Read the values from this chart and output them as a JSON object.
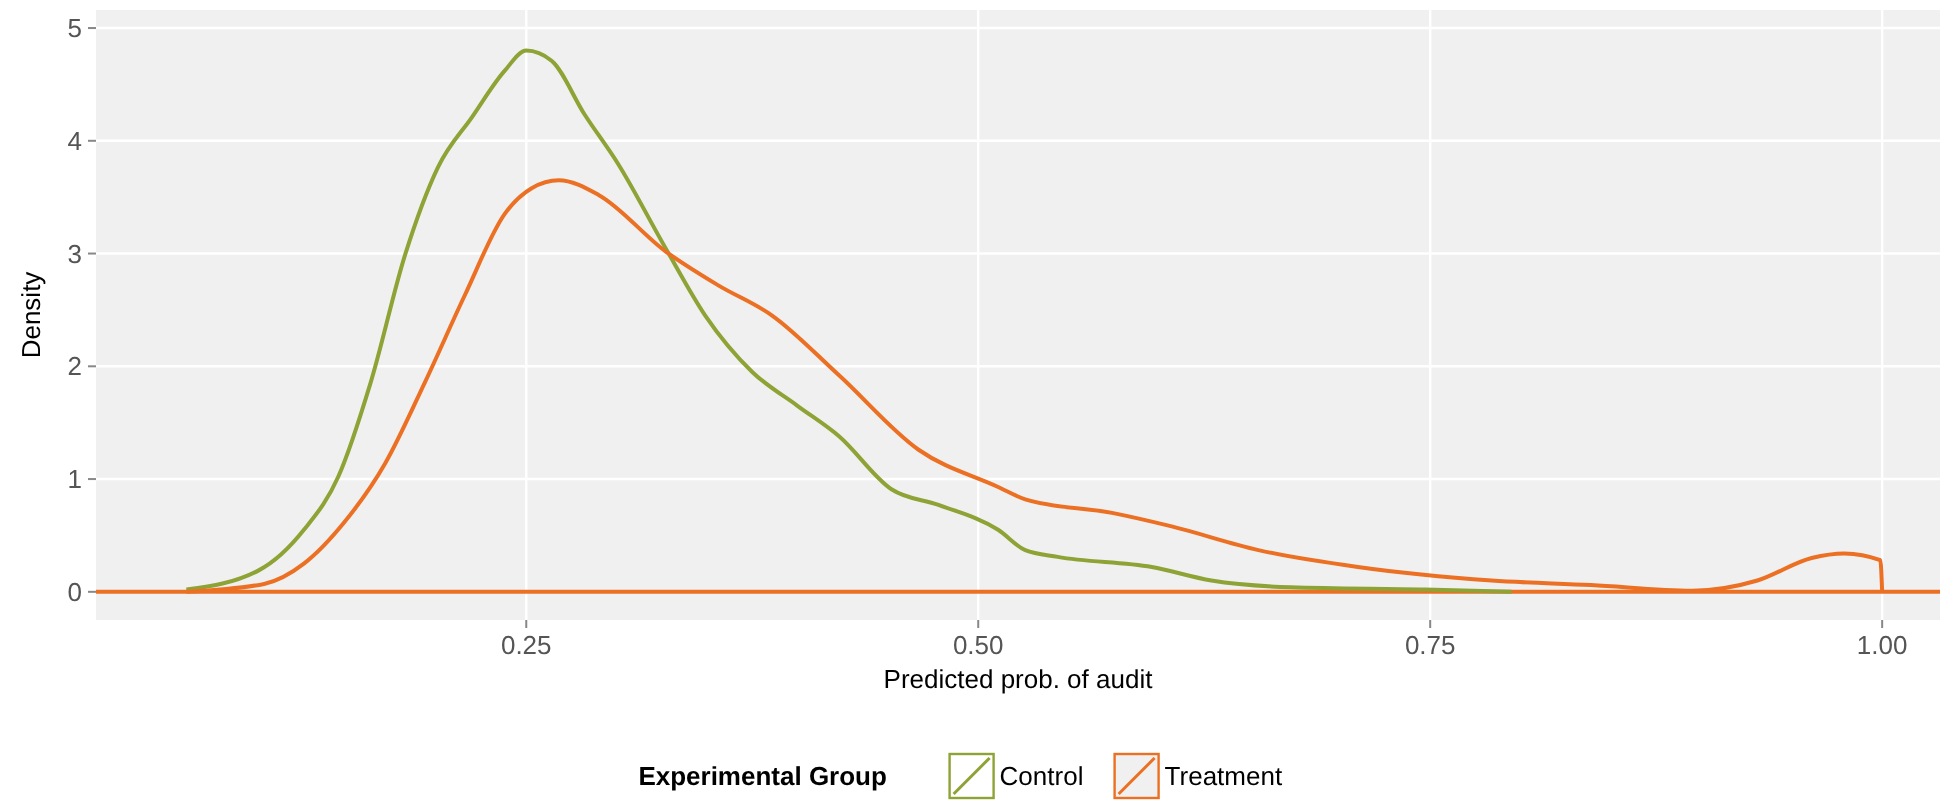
{
  "chart_data": {
    "type": "line",
    "xlabel": "Predicted prob. of audit",
    "ylabel": "Density",
    "legend_title": "Experimental Group",
    "legend": "bottom",
    "grid": true,
    "line_style": "solid",
    "marker": "none",
    "xlim": [
      0.012,
      1.032
    ],
    "ylim": [
      -0.25,
      5.16
    ],
    "xticks": [
      {
        "value": 0.25,
        "label": "0.25"
      },
      {
        "value": 0.5,
        "label": "0.50"
      },
      {
        "value": 0.75,
        "label": "0.75"
      },
      {
        "value": 1,
        "label": "1.00"
      }
    ],
    "yticks": [
      0,
      1,
      2,
      3,
      4,
      5
    ],
    "ref_lines": [
      {
        "axis": "y",
        "value": 0,
        "color": "#ec7024"
      }
    ],
    "series": [
      {
        "name": "Control",
        "color": "#8ea336",
        "x": [
          0.062,
          0.102,
          0.127,
          0.146,
          0.164,
          0.183,
          0.201,
          0.22,
          0.238,
          0.25,
          0.264,
          0.282,
          0.301,
          0.327,
          0.349,
          0.375,
          0.4,
          0.423,
          0.452,
          0.478,
          0.511,
          0.526,
          0.544,
          0.596,
          0.629,
          0.673,
          0.747,
          0.795
        ],
        "values": [
          0.02,
          0.19,
          0.55,
          1.02,
          1.86,
          2.99,
          3.76,
          4.21,
          4.62,
          4.8,
          4.71,
          4.24,
          3.79,
          3.05,
          2.45,
          1.95,
          1.65,
          1.38,
          0.91,
          0.77,
          0.55,
          0.37,
          0.31,
          0.22,
          0.1,
          0.04,
          0.02,
          0
        ]
      },
      {
        "name": "Treatment",
        "color": "#ec7024",
        "x": [
          0.062,
          0.105,
          0.127,
          0.149,
          0.172,
          0.194,
          0.216,
          0.238,
          0.253,
          0.268,
          0.29,
          0.327,
          0.356,
          0.386,
          0.423,
          0.467,
          0.511,
          0.526,
          0.574,
          0.607,
          0.655,
          0.71,
          0.784,
          0.839,
          0.895,
          0.931,
          0.961,
          0.979,
          0.999,
          1.0
        ],
        "values": [
          0,
          0.07,
          0.25,
          0.61,
          1.14,
          1.86,
          2.63,
          3.35,
          3.58,
          3.65,
          3.52,
          3.02,
          2.72,
          2.45,
          1.92,
          1.26,
          0.93,
          0.82,
          0.7,
          0.58,
          0.37,
          0.22,
          0.1,
          0.06,
          0.01,
          0.1,
          0.3,
          0.34,
          0.28,
          0
        ]
      }
    ]
  }
}
